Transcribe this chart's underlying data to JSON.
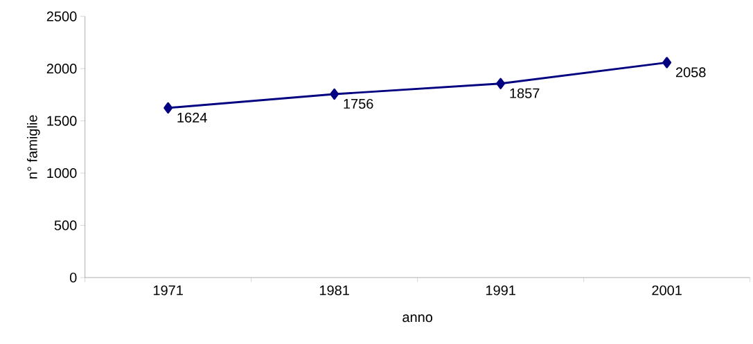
{
  "chart_data": {
    "type": "line",
    "xlabel": "anno",
    "ylabel": "n° famiglie",
    "categories": [
      "1971",
      "1981",
      "1991",
      "2001"
    ],
    "series": [
      {
        "color": "#000080",
        "values": [
          1624,
          1756,
          1857,
          2058
        ]
      }
    ],
    "ylim": [
      0,
      2500
    ],
    "yticks": [
      0,
      500,
      1000,
      1500,
      2000,
      2500
    ],
    "data_labels": true,
    "marker": "diamond",
    "line_style": "solid",
    "grid": false
  }
}
